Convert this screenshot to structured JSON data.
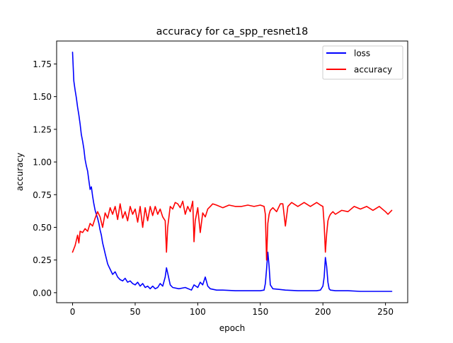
{
  "chart_data": {
    "type": "line",
    "title": "accuracy for ca_spp_resnet18",
    "xlabel": "epoch",
    "ylabel": "accuracy",
    "xlim": [
      -12.75,
      267.75
    ],
    "ylim": [
      -0.0765,
      1.9255
    ],
    "xticks": [
      0,
      50,
      100,
      150,
      200,
      250
    ],
    "xtick_labels": [
      "0",
      "50",
      "100",
      "150",
      "200",
      "250"
    ],
    "yticks": [
      0.0,
      0.25,
      0.5,
      0.75,
      1.0,
      1.25,
      1.5,
      1.75
    ],
    "ytick_labels": [
      "0.00",
      "0.25",
      "0.50",
      "0.75",
      "1.00",
      "1.25",
      "1.50",
      "1.75"
    ],
    "grid": false,
    "legend_position": "upper right",
    "series": [
      {
        "name": "loss",
        "color": "#0000ff",
        "x": [
          0,
          1,
          2,
          3,
          4,
          5,
          6,
          7,
          8,
          9,
          10,
          11,
          12,
          13,
          14,
          15,
          16,
          17,
          18,
          19,
          20,
          21,
          22,
          23,
          24,
          25,
          26,
          27,
          28,
          29,
          30,
          32,
          34,
          36,
          38,
          40,
          42,
          44,
          46,
          48,
          50,
          52,
          54,
          56,
          58,
          60,
          62,
          64,
          66,
          68,
          70,
          72,
          74,
          75,
          76,
          78,
          80,
          85,
          90,
          95,
          97,
          100,
          102,
          104,
          106,
          108,
          110,
          115,
          120,
          130,
          140,
          150,
          153,
          154,
          155,
          156,
          157,
          158,
          160,
          165,
          170,
          180,
          190,
          195,
          198,
          200,
          201,
          202,
          203,
          204,
          205,
          206,
          210,
          220,
          230,
          240,
          250,
          255
        ],
        "y": [
          1.84,
          1.62,
          1.55,
          1.49,
          1.42,
          1.36,
          1.29,
          1.21,
          1.16,
          1.1,
          1.02,
          0.97,
          0.93,
          0.86,
          0.79,
          0.81,
          0.74,
          0.68,
          0.63,
          0.6,
          0.57,
          0.53,
          0.48,
          0.44,
          0.38,
          0.34,
          0.3,
          0.26,
          0.22,
          0.2,
          0.18,
          0.14,
          0.16,
          0.12,
          0.1,
          0.09,
          0.11,
          0.08,
          0.09,
          0.07,
          0.06,
          0.08,
          0.05,
          0.07,
          0.04,
          0.05,
          0.03,
          0.05,
          0.03,
          0.04,
          0.07,
          0.05,
          0.12,
          0.19,
          0.15,
          0.06,
          0.04,
          0.03,
          0.04,
          0.02,
          0.06,
          0.04,
          0.08,
          0.06,
          0.12,
          0.05,
          0.03,
          0.02,
          0.02,
          0.015,
          0.015,
          0.015,
          0.02,
          0.07,
          0.18,
          0.31,
          0.2,
          0.06,
          0.03,
          0.025,
          0.02,
          0.015,
          0.015,
          0.015,
          0.02,
          0.05,
          0.12,
          0.27,
          0.2,
          0.08,
          0.03,
          0.02,
          0.015,
          0.015,
          0.01,
          0.01,
          0.01,
          0.01
        ]
      },
      {
        "name": "accuracy",
        "color": "#ff0000",
        "x": [
          0,
          2,
          4,
          5,
          6,
          8,
          10,
          12,
          14,
          16,
          18,
          20,
          22,
          24,
          26,
          28,
          30,
          32,
          34,
          36,
          38,
          40,
          42,
          44,
          46,
          48,
          50,
          52,
          54,
          56,
          58,
          60,
          62,
          64,
          66,
          68,
          70,
          72,
          74,
          75,
          76,
          78,
          80,
          82,
          84,
          86,
          88,
          90,
          92,
          94,
          96,
          97,
          98,
          100,
          102,
          104,
          106,
          108,
          110,
          112,
          115,
          120,
          125,
          130,
          135,
          140,
          145,
          150,
          153,
          154,
          155,
          156,
          157,
          158,
          160,
          163,
          166,
          168,
          170,
          172,
          175,
          180,
          185,
          190,
          195,
          198,
          200,
          201,
          202,
          203,
          204,
          205,
          206,
          208,
          210,
          215,
          220,
          225,
          230,
          235,
          240,
          245,
          250,
          252,
          255
        ],
        "y": [
          0.31,
          0.36,
          0.44,
          0.38,
          0.47,
          0.46,
          0.49,
          0.47,
          0.53,
          0.51,
          0.57,
          0.62,
          0.58,
          0.5,
          0.61,
          0.57,
          0.65,
          0.6,
          0.66,
          0.56,
          0.68,
          0.57,
          0.62,
          0.55,
          0.66,
          0.6,
          0.64,
          0.54,
          0.66,
          0.5,
          0.65,
          0.55,
          0.66,
          0.59,
          0.66,
          0.6,
          0.64,
          0.58,
          0.55,
          0.31,
          0.5,
          0.66,
          0.64,
          0.69,
          0.68,
          0.65,
          0.7,
          0.6,
          0.66,
          0.62,
          0.7,
          0.39,
          0.55,
          0.65,
          0.46,
          0.61,
          0.58,
          0.64,
          0.66,
          0.68,
          0.67,
          0.65,
          0.67,
          0.66,
          0.66,
          0.67,
          0.66,
          0.67,
          0.66,
          0.6,
          0.25,
          0.53,
          0.6,
          0.63,
          0.65,
          0.62,
          0.68,
          0.68,
          0.51,
          0.66,
          0.69,
          0.66,
          0.69,
          0.66,
          0.69,
          0.67,
          0.66,
          0.52,
          0.31,
          0.45,
          0.55,
          0.58,
          0.6,
          0.62,
          0.6,
          0.63,
          0.62,
          0.66,
          0.64,
          0.66,
          0.63,
          0.66,
          0.62,
          0.6,
          0.63
        ]
      }
    ]
  }
}
